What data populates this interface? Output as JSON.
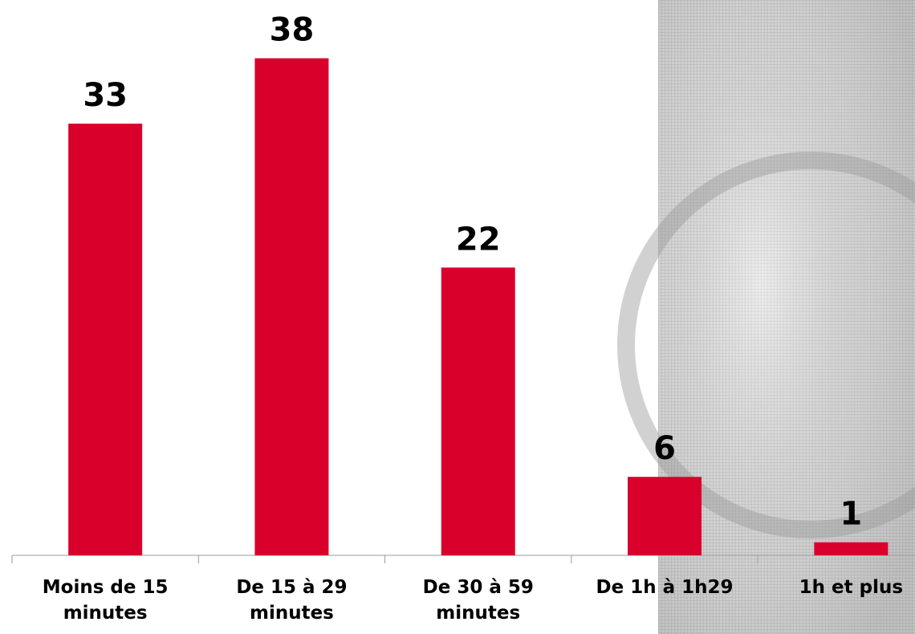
{
  "chart_data": {
    "type": "bar",
    "categories": [
      "Moins de 15 minutes",
      "De 15 à 29 minutes",
      "De 30 à 59 minutes",
      "De 1h à 1h29",
      "1h et plus"
    ],
    "values": [
      33,
      38,
      22,
      6,
      1
    ],
    "color": "#d9002b"
  }
}
